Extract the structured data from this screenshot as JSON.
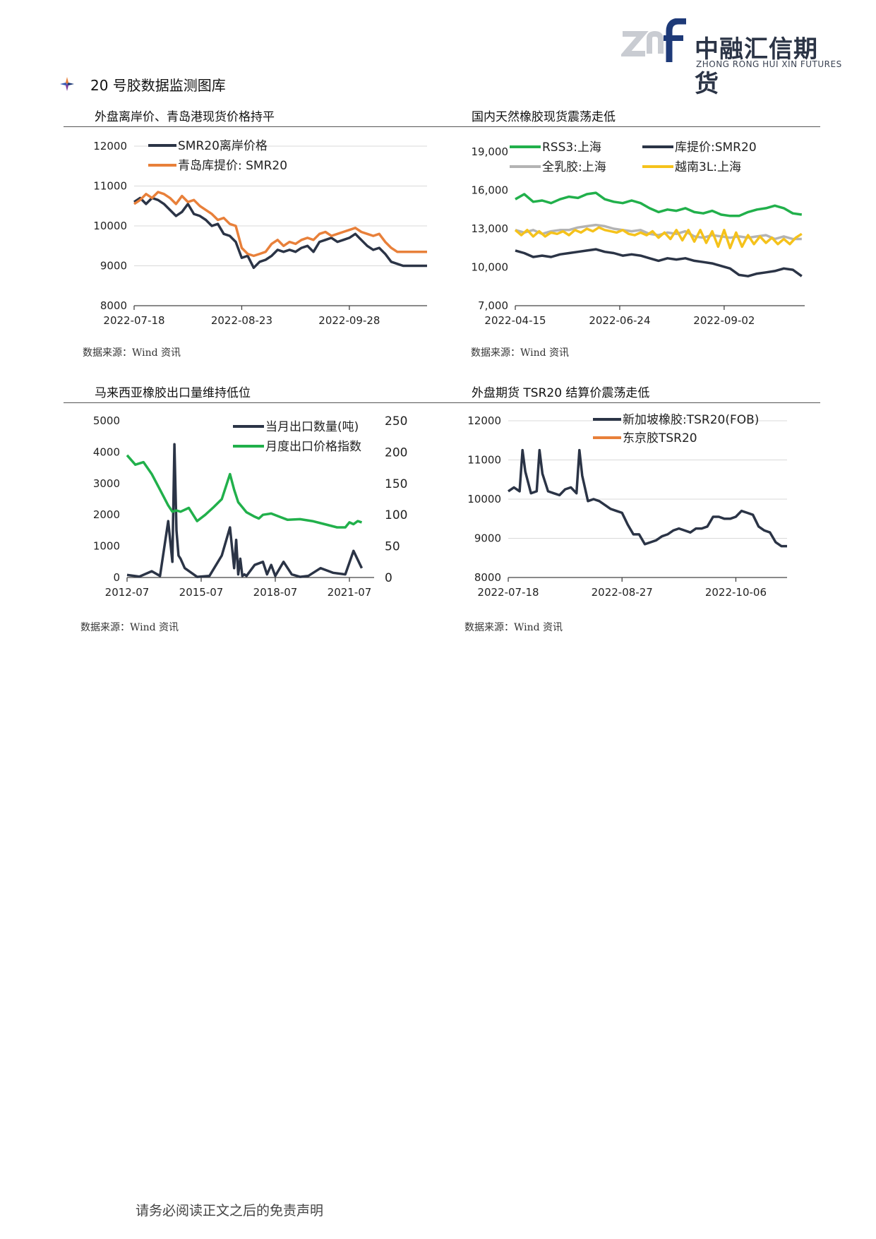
{
  "header": {
    "logo_mark_text": "znf",
    "logo_cn": "中融汇信期货",
    "logo_en": "ZHONG RONG HUI XIN FUTURES"
  },
  "section": {
    "title": "20 号胶数据监测图库"
  },
  "colors": {
    "navy": "#2b3446",
    "orange": "#e8803a",
    "green": "#21b04b",
    "gray": "#b3b3b3",
    "yellow": "#f5c21b",
    "grid": "#d9d9d9"
  },
  "panels": [
    {
      "title": "外盘离岸价、青岛港现货价格持平",
      "source": "数据来源：Wind 资讯"
    },
    {
      "title": "国内天然橡胶现货震荡走低",
      "source": "数据来源：Wind 资讯"
    },
    {
      "title": "马来西亚橡胶出口量维持低位",
      "source": "数据来源：Wind 资讯"
    },
    {
      "title": "外盘期货 TSR20 结算价震荡走低",
      "source": "数据来源：Wind 资讯"
    }
  ],
  "chart_data": [
    {
      "type": "line",
      "x_ticks": [
        "2022-07-18",
        "2022-08-23",
        "2022-09-28"
      ],
      "x_tick_pos": [
        0,
        36,
        72
      ],
      "x_range": [
        0,
        98
      ],
      "ylim": [
        8000,
        12000
      ],
      "y_ticks": [
        "8000",
        "9000",
        "10000",
        "11000",
        "12000"
      ],
      "y_tick_values": [
        8000,
        9000,
        10000,
        11000,
        12000
      ],
      "grid": true,
      "legend": "top-left",
      "series": [
        {
          "name": "SMR20离岸价格",
          "color": "#2b3446",
          "x": [
            0,
            2,
            4,
            6,
            8,
            10,
            12,
            14,
            16,
            18,
            20,
            22,
            24,
            26,
            28,
            30,
            32,
            34,
            36,
            38,
            40,
            42,
            44,
            46,
            48,
            50,
            52,
            54,
            56,
            58,
            60,
            62,
            64,
            66,
            68,
            70,
            72,
            74,
            76,
            78,
            80,
            82,
            84,
            86,
            88,
            90,
            92,
            94,
            96,
            98
          ],
          "y": [
            10600,
            10700,
            10550,
            10700,
            10650,
            10550,
            10400,
            10250,
            10350,
            10550,
            10300,
            10250,
            10150,
            10000,
            10050,
            9800,
            9750,
            9600,
            9200,
            9250,
            8950,
            9100,
            9150,
            9250,
            9400,
            9350,
            9400,
            9350,
            9450,
            9500,
            9350,
            9600,
            9650,
            9700,
            9600,
            9650,
            9700,
            9800,
            9650,
            9500,
            9400,
            9450,
            9300,
            9100,
            9050,
            9000,
            9000,
            9000,
            9000,
            9000
          ]
        },
        {
          "name": "青岛库提价: SMR20",
          "color": "#e8803a",
          "x": [
            0,
            2,
            4,
            6,
            8,
            10,
            12,
            14,
            16,
            18,
            20,
            22,
            24,
            26,
            28,
            30,
            32,
            34,
            36,
            38,
            40,
            42,
            44,
            46,
            48,
            50,
            52,
            54,
            56,
            58,
            60,
            62,
            64,
            66,
            68,
            70,
            72,
            74,
            76,
            78,
            80,
            82,
            84,
            86,
            88,
            90,
            92,
            94,
            96,
            98
          ],
          "y": [
            10550,
            10650,
            10800,
            10700,
            10850,
            10800,
            10700,
            10550,
            10750,
            10600,
            10650,
            10500,
            10400,
            10300,
            10150,
            10200,
            10050,
            10000,
            9450,
            9300,
            9250,
            9300,
            9350,
            9550,
            9650,
            9500,
            9600,
            9550,
            9650,
            9700,
            9650,
            9800,
            9850,
            9750,
            9800,
            9850,
            9900,
            9950,
            9850,
            9800,
            9750,
            9800,
            9600,
            9450,
            9350,
            9350,
            9350,
            9350,
            9350,
            9350
          ]
        }
      ]
    },
    {
      "type": "line",
      "x_ticks": [
        "2022-04-15",
        "2022-06-24",
        "2022-09-02"
      ],
      "x_tick_pos": [
        0,
        70,
        140
      ],
      "x_range": [
        0,
        194
      ],
      "ylim": [
        7000,
        19000
      ],
      "y_ticks": [
        "7,000",
        "10,000",
        "13,000",
        "16,000",
        "19,000"
      ],
      "y_tick_values": [
        7000,
        10000,
        13000,
        16000,
        19000
      ],
      "grid": false,
      "legend": "top",
      "series": [
        {
          "name": "RSS3:上海",
          "color": "#21b04b",
          "x": [
            0,
            6,
            12,
            18,
            24,
            30,
            36,
            42,
            48,
            54,
            60,
            66,
            72,
            78,
            84,
            90,
            96,
            102,
            108,
            114,
            120,
            126,
            132,
            138,
            144,
            150,
            156,
            162,
            168,
            174,
            180,
            186,
            192
          ],
          "y": [
            15300,
            15700,
            15100,
            15200,
            15000,
            15300,
            15500,
            15400,
            15700,
            15800,
            15300,
            15100,
            15000,
            15200,
            15000,
            14600,
            14300,
            14500,
            14400,
            14600,
            14300,
            14200,
            14400,
            14100,
            14000,
            14000,
            14300,
            14500,
            14600,
            14800,
            14600,
            14200,
            14100
          ]
        },
        {
          "name": "库提价:SMR20",
          "color": "#2b3446",
          "x": [
            0,
            6,
            12,
            18,
            24,
            30,
            36,
            42,
            48,
            54,
            60,
            66,
            72,
            78,
            84,
            90,
            96,
            102,
            108,
            114,
            120,
            126,
            132,
            138,
            144,
            150,
            156,
            162,
            168,
            174,
            180,
            186,
            192
          ],
          "y": [
            11300,
            11100,
            10800,
            10900,
            10800,
            11000,
            11100,
            11200,
            11300,
            11400,
            11200,
            11100,
            10900,
            11000,
            10900,
            10700,
            10500,
            10700,
            10600,
            10700,
            10500,
            10400,
            10300,
            10100,
            9900,
            9400,
            9300,
            9500,
            9600,
            9700,
            9900,
            9800,
            9300
          ]
        },
        {
          "name": "全乳胶:上海",
          "color": "#b3b3b3",
          "x": [
            0,
            6,
            12,
            18,
            24,
            30,
            36,
            42,
            48,
            54,
            60,
            66,
            72,
            78,
            84,
            90,
            96,
            102,
            108,
            114,
            120,
            126,
            132,
            138,
            144,
            150,
            156,
            162,
            168,
            174,
            180,
            186,
            192
          ],
          "y": [
            12900,
            12700,
            12900,
            12600,
            12800,
            12900,
            12900,
            13100,
            13200,
            13300,
            13200,
            13000,
            12900,
            12800,
            12900,
            12600,
            12500,
            12700,
            12600,
            12800,
            12400,
            12300,
            12500,
            12400,
            12300,
            12400,
            12300,
            12400,
            12500,
            12200,
            12400,
            12200,
            12200
          ]
        },
        {
          "name": "越南3L:上海",
          "color": "#f5c21b",
          "x": [
            0,
            4,
            8,
            12,
            16,
            20,
            24,
            28,
            32,
            36,
            40,
            44,
            48,
            52,
            56,
            60,
            64,
            68,
            72,
            76,
            80,
            84,
            88,
            92,
            96,
            100,
            104,
            108,
            112,
            116,
            120,
            124,
            128,
            132,
            136,
            140,
            144,
            148,
            152,
            156,
            160,
            164,
            168,
            172,
            176,
            180,
            184,
            188,
            192
          ],
          "y": [
            12900,
            12500,
            12900,
            12400,
            12800,
            12400,
            12700,
            12600,
            12800,
            12500,
            12900,
            12700,
            13000,
            12800,
            13100,
            12900,
            12800,
            12700,
            12900,
            12600,
            12500,
            12700,
            12500,
            12800,
            12300,
            12700,
            12200,
            12900,
            12100,
            12900,
            12000,
            12900,
            11900,
            12800,
            11600,
            12900,
            11500,
            12700,
            11600,
            12500,
            11800,
            12400,
            11900,
            12300,
            11800,
            12200,
            11800,
            12300,
            12600
          ]
        }
      ]
    },
    {
      "type": "line",
      "x_ticks": [
        "2012-07",
        "2015-07",
        "2018-07",
        "2021-07"
      ],
      "x_tick_pos": [
        0,
        36,
        72,
        108
      ],
      "x_range": [
        0,
        120
      ],
      "ylim": [
        0,
        5000
      ],
      "y_ticks": [
        "0",
        "1000",
        "2000",
        "3000",
        "4000",
        "5000"
      ],
      "y_tick_values": [
        0,
        1000,
        2000,
        3000,
        4000,
        5000
      ],
      "y2lim": [
        0,
        250
      ],
      "y2_ticks": [
        "0",
        "50",
        "100",
        "150",
        "200",
        "250"
      ],
      "y2_tick_values": [
        0,
        50,
        100,
        150,
        200,
        250
      ],
      "grid": false,
      "legend": "top-right",
      "series": [
        {
          "name": "当月出口数量(吨)",
          "color": "#2b3446",
          "axis": "left",
          "x": [
            0,
            6,
            12,
            16,
            20,
            22,
            23,
            24,
            25,
            26,
            28,
            34,
            40,
            46,
            50,
            52,
            53,
            54,
            55,
            56,
            57,
            58,
            62,
            66,
            68,
            70,
            72,
            76,
            80,
            84,
            88,
            94,
            100,
            106,
            110,
            114
          ],
          "y": [
            80,
            30,
            200,
            50,
            1800,
            500,
            4250,
            1500,
            700,
            600,
            300,
            20,
            50,
            700,
            1600,
            300,
            1200,
            100,
            600,
            50,
            100,
            50,
            400,
            500,
            100,
            400,
            50,
            500,
            100,
            20,
            50,
            300,
            150,
            100,
            850,
            300
          ]
        },
        {
          "name": "月度出口价格指数",
          "color": "#21b04b",
          "axis": "right",
          "x": [
            0,
            4,
            8,
            12,
            16,
            20,
            22,
            24,
            26,
            30,
            34,
            38,
            42,
            46,
            50,
            52,
            54,
            58,
            62,
            64,
            66,
            70,
            74,
            78,
            84,
            90,
            96,
            102,
            106,
            108,
            110,
            112,
            114
          ],
          "y": [
            195,
            180,
            184,
            165,
            140,
            115,
            105,
            107,
            105,
            111,
            90,
            100,
            112,
            125,
            165,
            140,
            120,
            104,
            97,
            94,
            100,
            102,
            97,
            92,
            93,
            90,
            85,
            80,
            80,
            88,
            85,
            90,
            88
          ]
        }
      ]
    },
    {
      "type": "line",
      "x_ticks": [
        "2022-07-18",
        "2022-08-27",
        "2022-10-06"
      ],
      "x_tick_pos": [
        0,
        40,
        80
      ],
      "x_range": [
        0,
        98
      ],
      "ylim": [
        8000,
        12000
      ],
      "y_ticks": [
        "8000",
        "9000",
        "10000",
        "11000",
        "12000"
      ],
      "y_tick_values": [
        8000,
        9000,
        10000,
        11000,
        12000
      ],
      "grid": true,
      "legend": "top",
      "series": [
        {
          "name": "新加坡橡胶:TSR20(FOB)",
          "color": "#2b3446",
          "x": [
            0,
            2,
            4,
            5,
            6,
            8,
            10,
            11,
            12,
            14,
            16,
            18,
            20,
            22,
            24,
            25,
            26,
            28,
            30,
            32,
            34,
            36,
            38,
            40,
            42,
            44,
            46,
            48,
            50,
            52,
            54,
            56,
            58,
            60,
            62,
            64,
            66,
            68,
            70,
            72,
            74,
            76,
            78,
            80,
            82,
            84,
            86,
            88,
            90,
            92,
            94,
            96,
            98
          ],
          "y": [
            10200,
            10300,
            10200,
            11250,
            10700,
            10150,
            10200,
            11250,
            10650,
            10200,
            10150,
            10100,
            10250,
            10300,
            10150,
            11250,
            10600,
            9950,
            10000,
            9950,
            9850,
            9750,
            9700,
            9650,
            9350,
            9100,
            9100,
            8850,
            8900,
            8950,
            9050,
            9100,
            9200,
            9250,
            9200,
            9150,
            9250,
            9250,
            9300,
            9550,
            9550,
            9500,
            9500,
            9550,
            9700,
            9650,
            9600,
            9300,
            9200,
            9150,
            8900,
            8800,
            8800
          ]
        },
        {
          "name": "东京胶TSR20",
          "color": "#e8803a",
          "x": [],
          "y": []
        }
      ]
    }
  ],
  "footer": {
    "text": "请务必阅读正文之后的免责声明"
  }
}
